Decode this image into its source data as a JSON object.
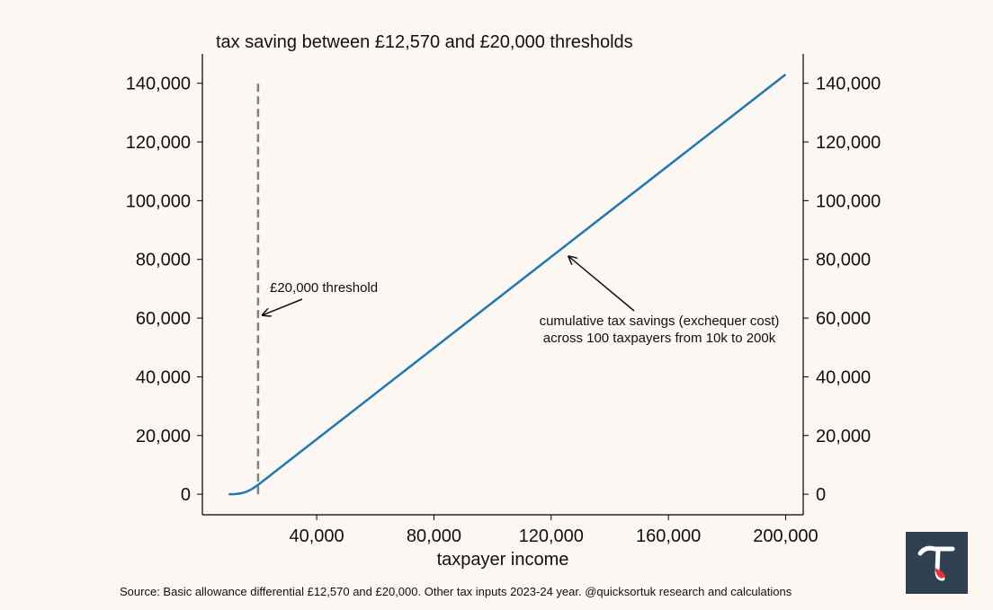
{
  "chart_data": {
    "type": "line",
    "title": "tax saving between £12,570 and £20,000 thresholds",
    "xlabel": "taxpayer income",
    "ylabel": "",
    "xlim": [
      1000,
      206000
    ],
    "ylim": [
      -7000,
      150000
    ],
    "xticks": [
      40000,
      80000,
      120000,
      160000,
      200000
    ],
    "xtick_labels": [
      "40,000",
      "80,000",
      "120,000",
      "160,000",
      "200,000"
    ],
    "yticks": [
      0,
      20000,
      40000,
      60000,
      80000,
      100000,
      120000,
      140000
    ],
    "ytick_labels": [
      "0",
      "20,000",
      "40,000",
      "60,000",
      "80,000",
      "100,000",
      "120,000",
      "140,000"
    ],
    "series": [
      {
        "color": "#1f77b4",
        "x": [
          10000,
          12000,
          14000,
          16000,
          18000,
          20000,
          200000
        ],
        "y": [
          0,
          30,
          250,
          800,
          1800,
          3200,
          143000
        ]
      }
    ],
    "threshold_line": {
      "x": 20000,
      "y_top": 140000,
      "color": "#808080"
    },
    "annotations": [
      {
        "text": "£20,000 threshold",
        "arrow_to": [
          20000,
          61000
        ]
      },
      {
        "lines": [
          "cumulative tax savings (exchequer cost)",
          "across 100 taxpayers from 10k to 200k"
        ],
        "arrow_to": [
          126000,
          81000
        ]
      }
    ],
    "source": "Source: Basic allowance differential £12,570 and £20,000. Other tax inputs 2023-24 year. @quicksortuk research and calculations",
    "grid": false,
    "legend": "none",
    "y_axis_both_sides": true
  },
  "logo": {
    "icon": "tau-icon",
    "background": "#2f4050",
    "accent": "#e8353a"
  }
}
